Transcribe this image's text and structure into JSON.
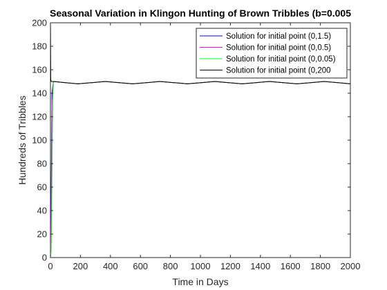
{
  "chart_data": {
    "type": "line",
    "title": "Seasonal Variation in Klingon Hunting of Brown Tribbles (b=0.005",
    "xlabel": "Time in Days",
    "ylabel": "Hundreds of Tribbles",
    "xlim": [
      0,
      2000
    ],
    "ylim": [
      0,
      200
    ],
    "xticks": [
      0,
      200,
      400,
      600,
      800,
      1000,
      1200,
      1400,
      1600,
      1800,
      2000
    ],
    "yticks": [
      0,
      20,
      40,
      60,
      80,
      100,
      120,
      140,
      160,
      180,
      200
    ],
    "grid": false,
    "legend_position": "top-right",
    "series": [
      {
        "name": "Solution for initial point (0,1.5)",
        "color": "#0000ff",
        "x": [
          0,
          5,
          10,
          20,
          100,
          183,
          275,
          365,
          458,
          548,
          640,
          730,
          823,
          913,
          1005,
          1095,
          1188,
          1278,
          1370,
          1460,
          1553,
          1643,
          1735,
          1825,
          1918,
          2000
        ],
        "y": [
          1.5,
          60,
          140,
          150,
          149,
          148,
          149,
          150,
          149,
          148,
          149,
          150,
          149,
          148,
          149,
          150,
          149,
          148,
          149,
          150,
          149,
          148,
          149,
          150,
          149,
          148
        ]
      },
      {
        "name": "Solution for initial point (0,0.5)",
        "color": "#ff00ff",
        "x": [
          0,
          5,
          10,
          20,
          100,
          183,
          275,
          365,
          458,
          548,
          640,
          730,
          823,
          913,
          1005,
          1095,
          1188,
          1278,
          1370,
          1460,
          1553,
          1643,
          1735,
          1825,
          1918,
          2000
        ],
        "y": [
          0.5,
          40,
          130,
          150,
          149,
          148,
          149,
          150,
          149,
          148,
          149,
          150,
          149,
          148,
          149,
          150,
          149,
          148,
          149,
          150,
          149,
          148,
          149,
          150,
          149,
          148
        ]
      },
      {
        "name": "Solution for initial point (0,0.05)",
        "color": "#00ff00",
        "x": [
          0,
          5,
          10,
          15,
          20,
          100,
          183,
          275,
          365,
          458,
          548,
          640,
          730,
          823,
          913,
          1005,
          1095,
          1188,
          1278,
          1370,
          1460,
          1553,
          1643,
          1735,
          1825,
          1918,
          2000
        ],
        "y": [
          0.05,
          5,
          60,
          135,
          150,
          149,
          148,
          149,
          150,
          149,
          148,
          149,
          150,
          149,
          148,
          149,
          150,
          149,
          148,
          149,
          150,
          149,
          148,
          149,
          150,
          149,
          148
        ]
      },
      {
        "name": "Solution for initial point (0,200",
        "color": "#000000",
        "x": [
          0,
          2,
          5,
          20,
          100,
          183,
          275,
          365,
          458,
          548,
          640,
          730,
          823,
          913,
          1005,
          1095,
          1188,
          1278,
          1370,
          1460,
          1553,
          1643,
          1735,
          1825,
          1918,
          2000
        ],
        "y": [
          200,
          152,
          150,
          150,
          149,
          148,
          149,
          150,
          149,
          148,
          149,
          150,
          149,
          148,
          149,
          150,
          149,
          148,
          149,
          150,
          149,
          148,
          149,
          150,
          149,
          148
        ]
      }
    ]
  }
}
